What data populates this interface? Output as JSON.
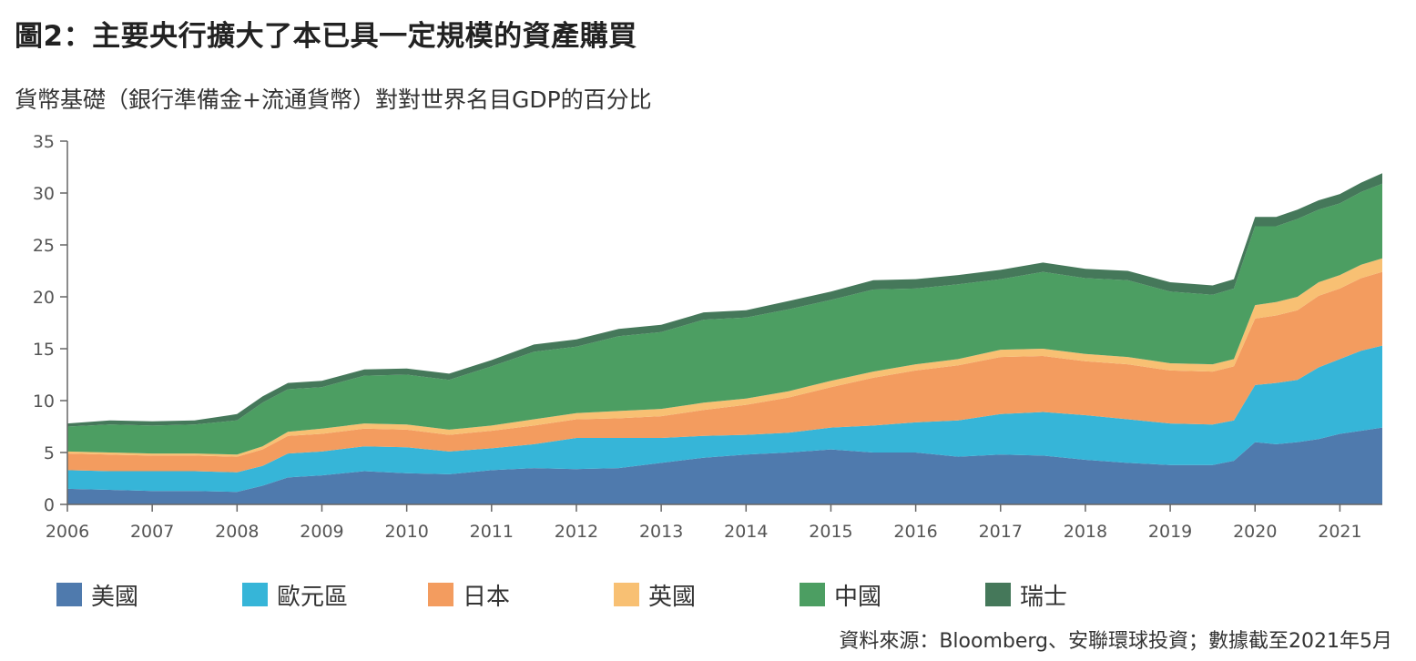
{
  "title": "圖2：主要央行擴大了本已具一定規模的資產購買",
  "subtitle": "貨幣基礎（銀行準備金+流通貨幣）對對世界名目GDP的百分比",
  "source": "資料來源：Bloomberg、安聯環球投資；數據截至2021年5月",
  "chart_data": {
    "type": "area",
    "stacked": true,
    "x": [
      2006.0,
      2006.5,
      2007.0,
      2007.5,
      2008.0,
      2008.3,
      2008.6,
      2009.0,
      2009.5,
      2010.0,
      2010.5,
      2011.0,
      2011.5,
      2012.0,
      2012.5,
      2013.0,
      2013.5,
      2014.0,
      2014.5,
      2015.0,
      2015.5,
      2016.0,
      2016.5,
      2017.0,
      2017.5,
      2018.0,
      2018.5,
      2019.0,
      2019.5,
      2019.75,
      2020.0,
      2020.25,
      2020.5,
      2020.75,
      2021.0,
      2021.25,
      2021.5
    ],
    "series": [
      {
        "name": "美國",
        "color": "#4f7aad",
        "values": [
          1.5,
          1.4,
          1.3,
          1.3,
          1.2,
          1.8,
          2.6,
          2.8,
          3.2,
          3.0,
          2.9,
          3.3,
          3.5,
          3.4,
          3.5,
          4.0,
          4.5,
          4.8,
          5.0,
          5.3,
          5.0,
          5.0,
          4.6,
          4.8,
          4.7,
          4.3,
          4.0,
          3.8,
          3.8,
          4.2,
          6.0,
          5.8,
          6.0,
          6.3,
          6.8,
          7.1,
          7.4
        ]
      },
      {
        "name": "歐元區",
        "color": "#36b5d8",
        "values": [
          1.8,
          1.8,
          1.9,
          1.9,
          1.9,
          1.9,
          2.3,
          2.3,
          2.4,
          2.5,
          2.2,
          2.1,
          2.3,
          3.0,
          2.9,
          2.4,
          2.1,
          1.9,
          1.9,
          2.1,
          2.6,
          2.9,
          3.5,
          3.9,
          4.2,
          4.3,
          4.2,
          4.0,
          3.9,
          3.9,
          5.5,
          5.9,
          6.0,
          6.9,
          7.2,
          7.7,
          7.9
        ]
      },
      {
        "name": "日本",
        "color": "#f39c5f",
        "values": [
          1.6,
          1.6,
          1.5,
          1.5,
          1.5,
          1.6,
          1.7,
          1.7,
          1.7,
          1.7,
          1.6,
          1.7,
          1.8,
          1.8,
          1.9,
          2.1,
          2.5,
          2.9,
          3.4,
          3.9,
          4.6,
          5.0,
          5.3,
          5.5,
          5.4,
          5.2,
          5.3,
          5.1,
          5.1,
          5.2,
          6.4,
          6.5,
          6.7,
          6.9,
          6.8,
          7.0,
          7.1
        ]
      },
      {
        "name": "英國",
        "color": "#f8c073",
        "values": [
          0.2,
          0.2,
          0.2,
          0.2,
          0.2,
          0.3,
          0.4,
          0.5,
          0.5,
          0.5,
          0.5,
          0.5,
          0.6,
          0.6,
          0.7,
          0.7,
          0.7,
          0.6,
          0.6,
          0.6,
          0.6,
          0.6,
          0.6,
          0.7,
          0.7,
          0.7,
          0.7,
          0.7,
          0.7,
          0.7,
          1.3,
          1.3,
          1.3,
          1.3,
          1.3,
          1.3,
          1.3
        ]
      },
      {
        "name": "中國",
        "color": "#4c9e62",
        "values": [
          2.4,
          2.7,
          2.7,
          2.8,
          3.3,
          4.2,
          4.1,
          4.0,
          4.6,
          4.8,
          4.8,
          5.7,
          6.5,
          6.4,
          7.2,
          7.4,
          8.0,
          7.8,
          7.9,
          7.8,
          7.9,
          7.3,
          7.2,
          6.8,
          7.4,
          7.3,
          7.4,
          6.9,
          6.7,
          6.8,
          7.6,
          7.3,
          7.5,
          7.0,
          6.9,
          7.0,
          7.2
        ]
      },
      {
        "name": "瑞士",
        "color": "#45785a",
        "values": [
          0.3,
          0.4,
          0.4,
          0.4,
          0.6,
          0.6,
          0.6,
          0.6,
          0.6,
          0.6,
          0.6,
          0.6,
          0.7,
          0.7,
          0.7,
          0.7,
          0.7,
          0.7,
          0.8,
          0.8,
          0.9,
          0.9,
          0.9,
          0.9,
          0.9,
          0.9,
          0.9,
          0.9,
          0.9,
          0.9,
          0.9,
          0.9,
          0.9,
          0.9,
          0.9,
          0.9,
          1.0
        ]
      }
    ],
    "xlim": [
      2006,
      2021.5
    ],
    "ylim": [
      0,
      35
    ],
    "yticks": [
      0,
      5,
      10,
      15,
      20,
      25,
      30,
      35
    ],
    "xticks": [
      "2006",
      "2007",
      "2008",
      "2009",
      "2010",
      "2011",
      "2012",
      "2013",
      "2014",
      "2015",
      "2016",
      "2017",
      "2018",
      "2019",
      "2020",
      "2021"
    ],
    "grid": false,
    "legend_position": "bottom"
  }
}
